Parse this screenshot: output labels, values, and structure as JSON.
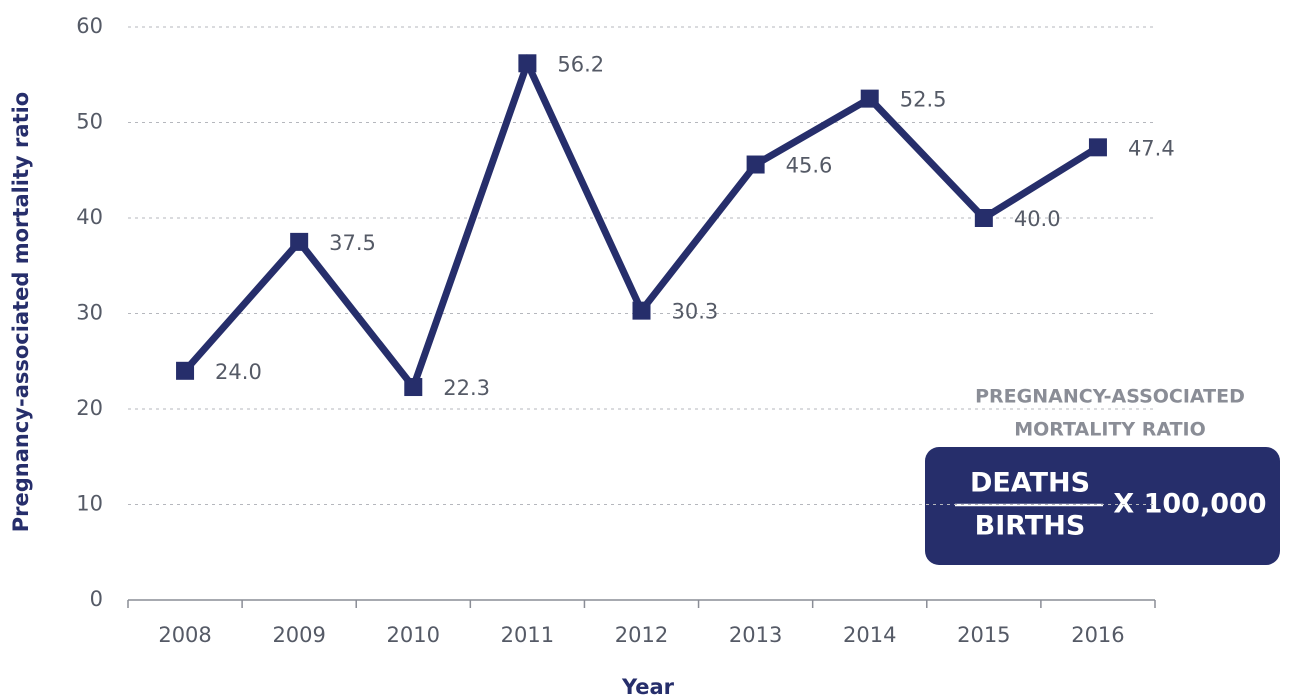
{
  "chart_data": {
    "type": "line",
    "y_label": "Pregnancy-associated mortality ratio",
    "x_label": "Year",
    "categories": [
      "2008",
      "2009",
      "2010",
      "2011",
      "2012",
      "2013",
      "2014",
      "2015",
      "2016"
    ],
    "values": [
      24.0,
      37.5,
      22.3,
      56.2,
      30.3,
      45.6,
      52.5,
      40.0,
      47.4
    ],
    "value_labels": [
      "24.0",
      "37.5",
      "22.3",
      "56.2",
      "30.3",
      "45.6",
      "52.5",
      "40.0",
      "47.4"
    ],
    "color": "#262e6b",
    "ylim": [
      0,
      60
    ],
    "yticks": [
      0,
      10,
      20,
      30,
      40,
      50,
      60
    ],
    "grid": true,
    "annotation": {
      "title": [
        "PREGNANCY-ASSOCIATED",
        "MORTALITY RATIO"
      ],
      "numerator": "DEATHS",
      "denominator": "BIRTHS",
      "multiplier": "X 100,000"
    }
  }
}
